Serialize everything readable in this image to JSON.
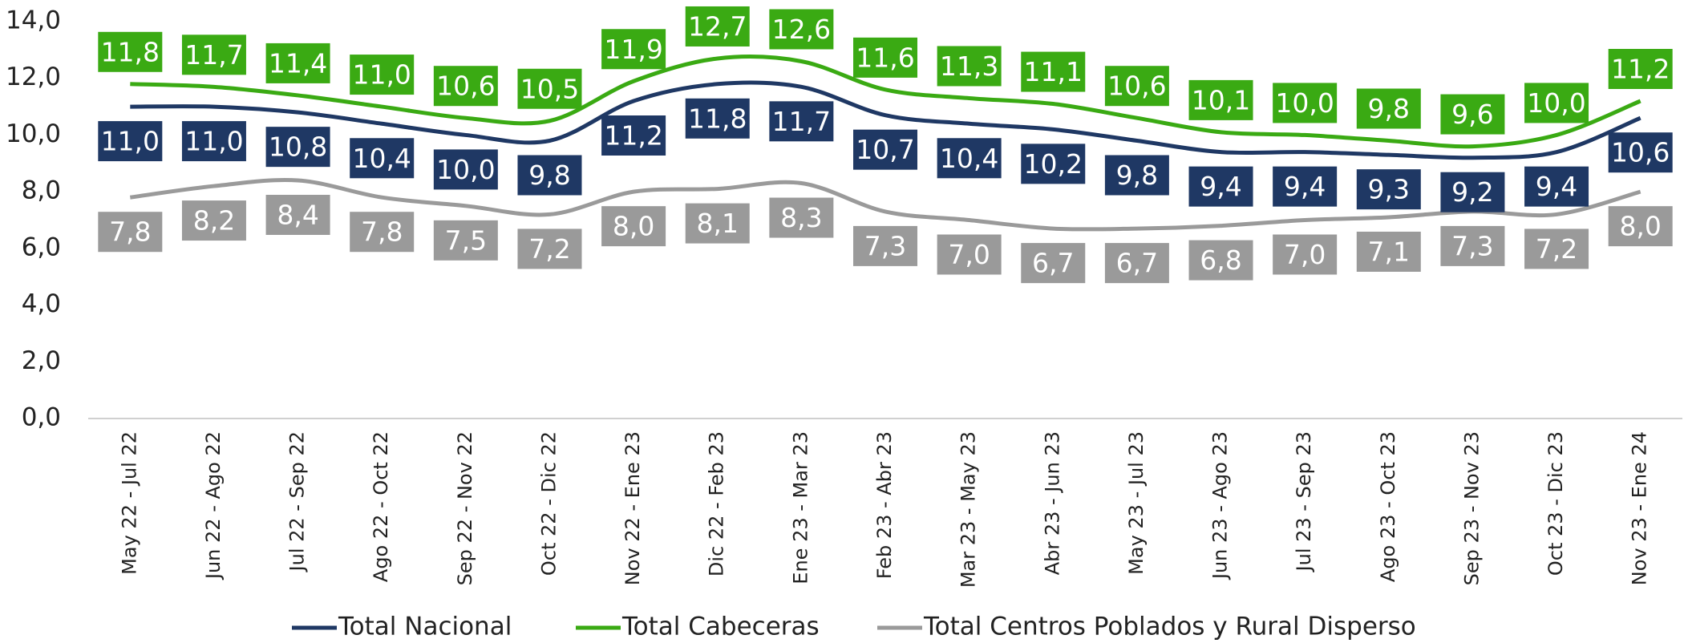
{
  "chart_data": {
    "type": "line",
    "categories": [
      "May 22 - Jul 22",
      "Jun 22 - Ago 22",
      "Jul 22 - Sep 22",
      "Ago 22 - Oct 22",
      "Sep 22 - Nov 22",
      "Oct 22 - Dic 22",
      "Nov 22 - Ene 23",
      "Dic 22 - Feb 23",
      "Ene 23 - Mar 23",
      "Feb 23 - Abr 23",
      "Mar 23 - May 23",
      "Abr 23 - Jun 23",
      "May 23 - Jul 23",
      "Jun 23 - Ago 23",
      "Jul 23 - Sep 23",
      "Ago 23 - Oct 23",
      "Sep 23 - Nov 23",
      "Oct 23 - Dic 23",
      "Nov 23 - Ene 24"
    ],
    "series": [
      {
        "name": "Total Nacional",
        "color": "#1f3864",
        "values": [
          11.0,
          11.0,
          10.8,
          10.4,
          10.0,
          9.8,
          11.2,
          11.8,
          11.7,
          10.7,
          10.4,
          10.2,
          9.8,
          9.4,
          9.4,
          9.3,
          9.2,
          9.4,
          10.6
        ],
        "value_labels": [
          "11,0",
          "11,0",
          "10,8",
          "10,4",
          "10,0",
          "9,8",
          "11,2",
          "11,8",
          "11,7",
          "10,7",
          "10,4",
          "10,2",
          "9,8",
          "9,4",
          "9,4",
          "9,3",
          "9,2",
          "9,4",
          "10,6"
        ]
      },
      {
        "name": "Total Cabeceras",
        "color": "#3aaa13",
        "values": [
          11.8,
          11.7,
          11.4,
          11.0,
          10.6,
          10.5,
          11.9,
          12.7,
          12.6,
          11.6,
          11.3,
          11.1,
          10.6,
          10.1,
          10.0,
          9.8,
          9.6,
          10.0,
          11.2
        ],
        "value_labels": [
          "11,8",
          "11,7",
          "11,4",
          "11,0",
          "10,6",
          "10,5",
          "11,9",
          "12,7",
          "12,6",
          "11,6",
          "11,3",
          "11,1",
          "10,6",
          "10,1",
          "10,0",
          "9,8",
          "9,6",
          "10,0",
          "11,2"
        ]
      },
      {
        "name": "Total Centros Poblados y Rural Disperso",
        "color": "#9a9a9a",
        "values": [
          7.8,
          8.2,
          8.4,
          7.8,
          7.5,
          7.2,
          8.0,
          8.1,
          8.3,
          7.3,
          7.0,
          6.7,
          6.7,
          6.8,
          7.0,
          7.1,
          7.3,
          7.2,
          8.0
        ],
        "value_labels": [
          "7,8",
          "8,2",
          "8,4",
          "7,8",
          "7,5",
          "7,2",
          "8,0",
          "8,1",
          "8,3",
          "7,3",
          "7,0",
          "6,7",
          "6,7",
          "6,8",
          "7,0",
          "7,1",
          "7,3",
          "7,2",
          "8,0"
        ]
      }
    ],
    "ylim": [
      0,
      14
    ],
    "yticks": [
      {
        "value": 0,
        "label": "0,0"
      },
      {
        "value": 2,
        "label": "2,0"
      },
      {
        "value": 4,
        "label": "4,0"
      },
      {
        "value": 6,
        "label": "6,0"
      },
      {
        "value": 8,
        "label": "8,0"
      },
      {
        "value": 10,
        "label": "10,0"
      },
      {
        "value": 12,
        "label": "12,0"
      },
      {
        "value": 14,
        "label": "14,0"
      }
    ],
    "grid": false,
    "legend": "bottom"
  }
}
